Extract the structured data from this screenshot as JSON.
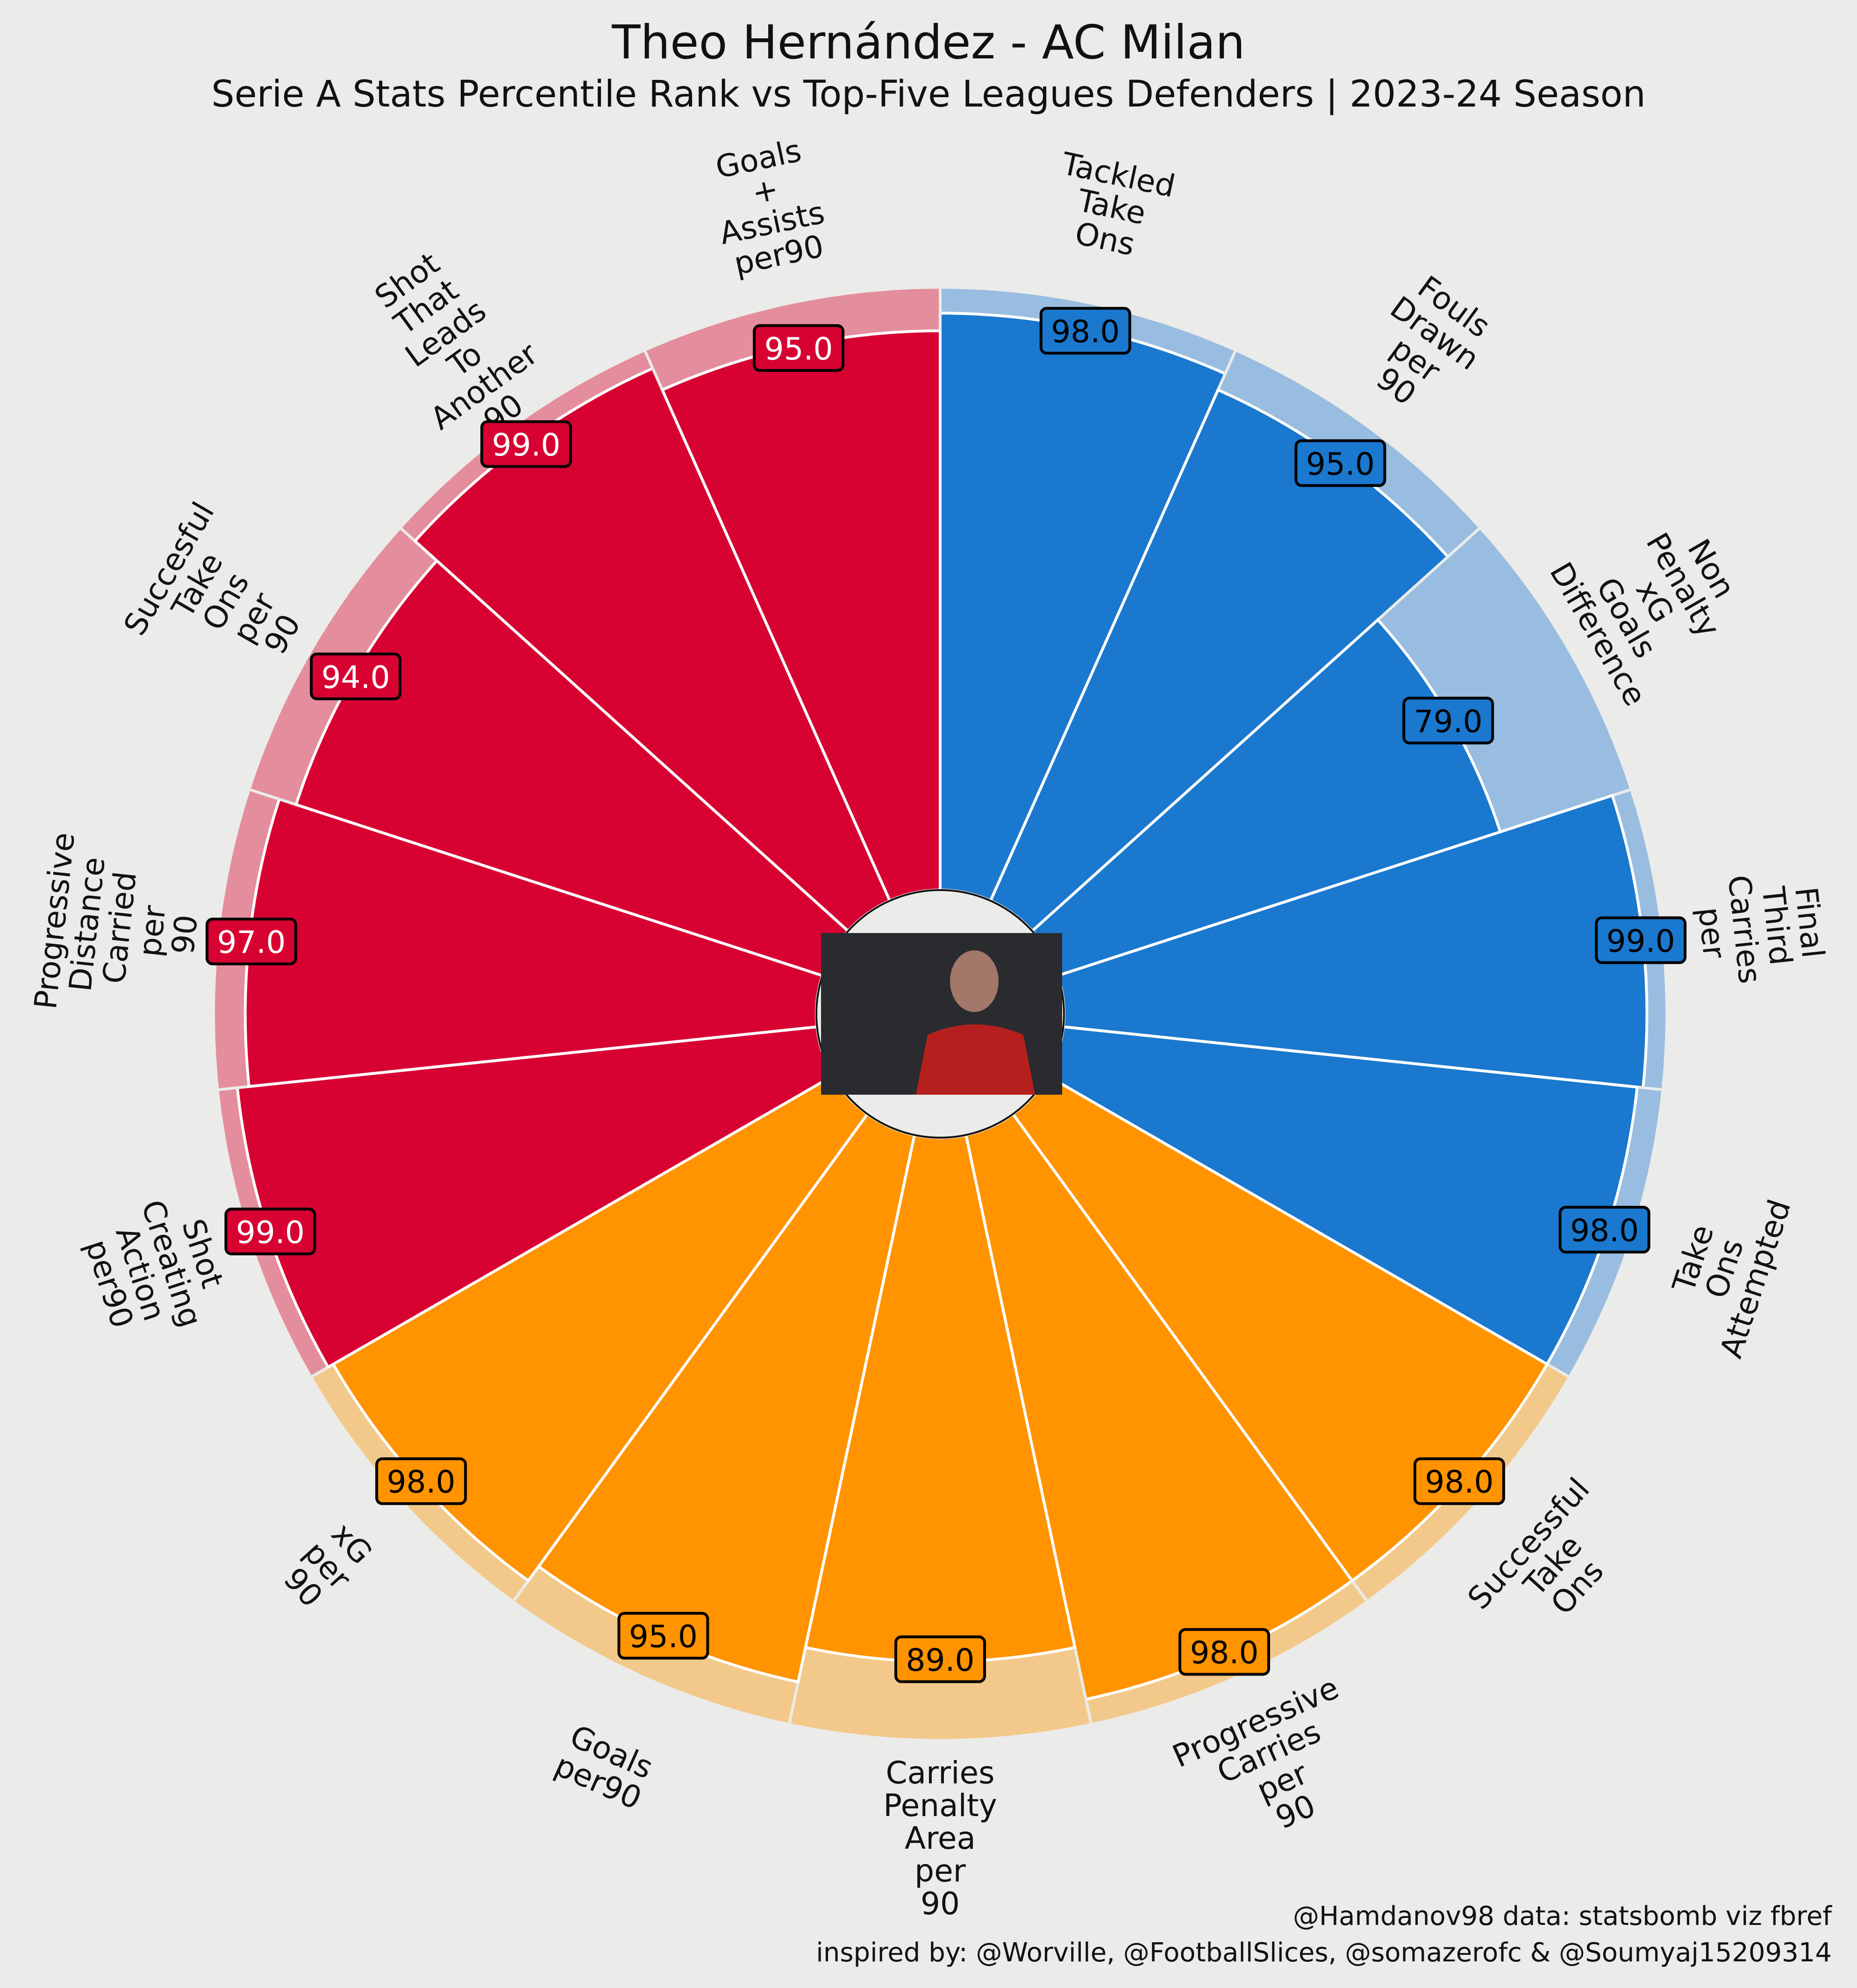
{
  "title": "Theo Hernández - AC Milan",
  "subtitle": "Serie A Stats Percentile Rank vs Top-Five Leagues Defenders | 2023-24 Season",
  "credits": {
    "line1": "@Hamdanov98 data: statsbomb viz fbref",
    "line2": "inspired by: @Worville, @FootballSlices, @somazerofc & @Soumyaj15209314"
  },
  "colors": {
    "background": "#ebebe9",
    "red": "#d70232",
    "red_light": "#e48d9c",
    "blue": "#1a78cf",
    "blue_light": "#98bde0",
    "orange": "#ff9300",
    "orange_light": "#f3c98b"
  },
  "center_image": {
    "description": "player-photo"
  },
  "chart_data": {
    "type": "pizza",
    "range": [
      0,
      100
    ],
    "start": "top",
    "direction": "clockwise",
    "params": [
      {
        "label": "Tackled Take Ons",
        "value": 98.0,
        "group": "blue"
      },
      {
        "label": "Fouls Drawn per 90",
        "value": 95.0,
        "group": "blue"
      },
      {
        "label": "Non Penalty xG Goals Difference",
        "value": 79.0,
        "group": "blue"
      },
      {
        "label": "Final Third Carries per",
        "value": 99.0,
        "group": "blue"
      },
      {
        "label": "Take Ons Attempted",
        "value": 98.0,
        "group": "blue"
      },
      {
        "label": "Successful Take Ons",
        "value": 98.0,
        "group": "orange"
      },
      {
        "label": "Progressive Carries per 90",
        "value": 98.0,
        "group": "orange"
      },
      {
        "label": "Carries Penalty Area per 90",
        "value": 89.0,
        "group": "orange"
      },
      {
        "label": "Goals per90",
        "value": 95.0,
        "group": "orange"
      },
      {
        "label": "xG per 90",
        "value": 98.0,
        "group": "orange"
      },
      {
        "label": "Shot Creating Action per90",
        "value": 99.0,
        "group": "red"
      },
      {
        "label": "Progressive Distance Carried per 90",
        "value": 97.0,
        "group": "red"
      },
      {
        "label": "Succesful Take Ons per 90",
        "value": 94.0,
        "group": "red"
      },
      {
        "label": "Shot That Leads To Another 90",
        "value": 99.0,
        "group": "red"
      },
      {
        "label": "Goals + Assists per90",
        "value": 95.0,
        "group": "red"
      }
    ]
  }
}
